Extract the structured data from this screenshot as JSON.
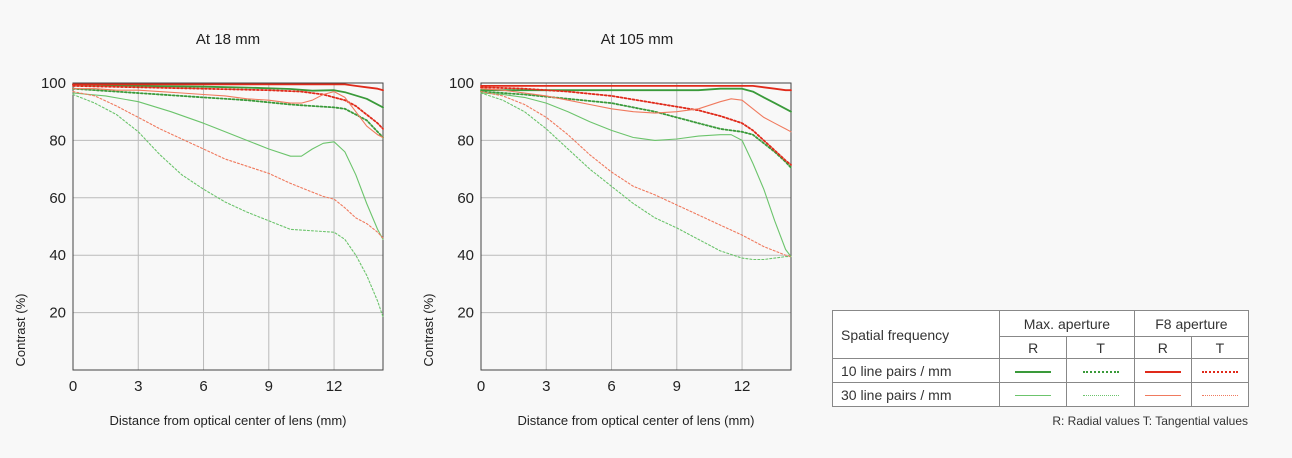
{
  "chart_data": [
    {
      "type": "line",
      "title": "At 18 mm",
      "xlabel": "Distance from optical center of lens (mm)",
      "ylabel": "Contrast (%)",
      "xlim": [
        0,
        14.25
      ],
      "ylim": [
        0,
        100
      ],
      "xticks": [
        0,
        3,
        6,
        9,
        12
      ],
      "yticks": [
        20,
        40,
        60,
        80,
        100
      ],
      "grid": true,
      "series": [
        {
          "name": "10 line pairs / mm, Max. aperture, R",
          "x": [
            0,
            2,
            4,
            6,
            8,
            10,
            11,
            12,
            12.5,
            13.5,
            14.25
          ],
          "y": [
            99.5,
            99.2,
            98.9,
            98.7,
            98.4,
            97.9,
            97.3,
            97.5,
            96.8,
            94.5,
            91.5
          ]
        },
        {
          "name": "10 line pairs / mm, Max. aperture, T",
          "x": [
            0,
            2,
            4,
            6,
            8,
            10,
            11,
            12,
            12.5,
            13.5,
            14.25
          ],
          "y": [
            98,
            97,
            96,
            95,
            94,
            92.5,
            92,
            91.5,
            91,
            87,
            81
          ]
        },
        {
          "name": "30 line pairs / mm, Max. aperture, R",
          "x": [
            0,
            1.5,
            3,
            4.5,
            6,
            7.5,
            9,
            10,
            10.5,
            11,
            11.5,
            12,
            12.5,
            13,
            13.5,
            14,
            14.25
          ],
          "y": [
            96.5,
            95.5,
            93.5,
            90,
            86,
            81.5,
            77,
            74.5,
            74.5,
            77,
            79,
            79.5,
            76,
            68,
            58,
            49,
            45.5
          ]
        },
        {
          "name": "30 line pairs / mm, Max. aperture, T",
          "x": [
            0,
            1,
            2,
            3,
            4,
            5,
            6,
            7,
            8,
            9,
            10,
            11,
            12,
            12.5,
            13,
            13.5,
            14,
            14.25
          ],
          "y": [
            96,
            93,
            89,
            83,
            75,
            68,
            63,
            58.5,
            55,
            52,
            49,
            48.5,
            48,
            45.5,
            40,
            33,
            24,
            18.5
          ]
        },
        {
          "name": "10 line pairs / mm, F8 aperture, R",
          "x": [
            0,
            3,
            6,
            9,
            11.5,
            12,
            12.5,
            13,
            13.5,
            14,
            14.25
          ],
          "y": [
            99.5,
            99.5,
            99.5,
            99.5,
            99.5,
            99.5,
            99.5,
            99,
            98.5,
            98,
            97.5
          ]
        },
        {
          "name": "10 line pairs / mm, F8 aperture, T",
          "x": [
            0,
            3,
            6,
            9,
            10.5,
            11.5,
            12,
            12.5,
            13,
            13.5,
            14,
            14.25
          ],
          "y": [
            99,
            98.5,
            98,
            97.5,
            97,
            96,
            95,
            94,
            92,
            89,
            86,
            84
          ]
        },
        {
          "name": "30 line pairs / mm, F8 aperture, R",
          "x": [
            0,
            1,
            2,
            3,
            4,
            5,
            6,
            7,
            8,
            9,
            10,
            10.5,
            11,
            11.5,
            12,
            12.5,
            13,
            13.5,
            14,
            14.25
          ],
          "y": [
            98,
            98,
            97.5,
            97.5,
            97,
            96.5,
            96,
            95.5,
            94.5,
            94,
            93,
            93,
            94,
            96,
            97,
            95,
            90,
            85,
            82,
            81
          ]
        },
        {
          "name": "30 line pairs / mm, F8 aperture, T",
          "x": [
            0,
            1,
            2,
            3,
            4,
            5,
            6,
            7,
            8,
            9,
            10,
            11,
            11.5,
            12,
            12.5,
            13,
            13.5,
            14,
            14.25
          ],
          "y": [
            97,
            95.5,
            92,
            88,
            84,
            80.5,
            77,
            73.5,
            71,
            68.5,
            65,
            62,
            60.5,
            59.5,
            56.5,
            53,
            51,
            48,
            46
          ]
        }
      ]
    },
    {
      "type": "line",
      "title": "At 105 mm",
      "xlabel": "Distance from optical center of lens (mm)",
      "ylabel": "Contrast (%)",
      "xlim": [
        0,
        14.25
      ],
      "ylim": [
        0,
        100
      ],
      "xticks": [
        0,
        3,
        6,
        9,
        12
      ],
      "yticks": [
        20,
        40,
        60,
        80,
        100
      ],
      "grid": true,
      "series": [
        {
          "name": "10 line pairs / mm, Max. aperture, R",
          "x": [
            0,
            2,
            4,
            6,
            8,
            10,
            11,
            12,
            12.5,
            13,
            13.5,
            14,
            14.25
          ],
          "y": [
            97.5,
            97.5,
            97.5,
            97.5,
            97.5,
            97.5,
            98,
            98,
            97,
            95,
            93,
            91,
            90
          ]
        },
        {
          "name": "10 line pairs / mm, Max. aperture, T",
          "x": [
            0,
            2,
            4,
            6,
            8,
            10,
            11,
            11.5,
            12,
            12.5,
            13,
            13.5,
            14,
            14.25
          ],
          "y": [
            97,
            96,
            94.5,
            93,
            90,
            86,
            84,
            83.5,
            83,
            82,
            79,
            76,
            72.5,
            70.5
          ]
        },
        {
          "name": "30 line pairs / mm, Max. aperture, R",
          "x": [
            0,
            1,
            2,
            3,
            4,
            5,
            6,
            7,
            8,
            9,
            10,
            11,
            11.5,
            12,
            12.5,
            13,
            13.5,
            14,
            14.25
          ],
          "y": [
            96.5,
            96,
            95,
            93,
            90,
            86.5,
            83.5,
            81,
            80,
            80.5,
            81.5,
            82,
            82,
            80,
            72,
            63,
            52,
            42,
            39.5
          ]
        },
        {
          "name": "30 line pairs / mm, Max. aperture, T",
          "x": [
            0,
            1,
            2,
            3,
            4,
            5,
            6,
            7,
            8,
            9,
            10,
            11,
            12,
            12.5,
            13,
            13.5,
            14,
            14.25
          ],
          "y": [
            96.5,
            94,
            90,
            84,
            77,
            70,
            64,
            58,
            53,
            49.5,
            45.5,
            41.5,
            39,
            38.5,
            38.5,
            39,
            39.5,
            39.5
          ]
        },
        {
          "name": "10 line pairs / mm, F8 aperture, R",
          "x": [
            0,
            3,
            6,
            9,
            12,
            12.5,
            13,
            13.5,
            14,
            14.25
          ],
          "y": [
            99,
            99,
            99,
            99,
            99,
            99,
            98.5,
            98,
            97.5,
            97.5
          ]
        },
        {
          "name": "10 line pairs / mm, F8 aperture, T",
          "x": [
            0,
            2,
            4,
            6,
            8,
            10,
            11,
            12,
            12.5,
            13,
            13.5,
            14,
            14.25
          ],
          "y": [
            98.5,
            98,
            97,
            95.5,
            93,
            90.5,
            88.5,
            86,
            83.5,
            80,
            76.5,
            73,
            71.5
          ]
        },
        {
          "name": "30 line pairs / mm, F8 aperture, R",
          "x": [
            0,
            1,
            2,
            3,
            4,
            5,
            6,
            7,
            8,
            9,
            10,
            11,
            11.5,
            12,
            12.5,
            13,
            13.5,
            14,
            14.25
          ],
          "y": [
            98,
            97.5,
            96.5,
            95.5,
            94,
            92.5,
            91,
            90,
            89.5,
            90,
            91,
            93.5,
            94.5,
            94,
            91,
            88,
            86,
            84,
            83
          ]
        },
        {
          "name": "30 line pairs / mm, F8 aperture, T",
          "x": [
            0,
            1,
            2,
            3,
            4,
            5,
            6,
            7,
            8,
            9,
            10,
            11,
            12,
            12.5,
            13,
            13.5,
            14,
            14.25
          ],
          "y": [
            97,
            95.5,
            92.5,
            88,
            82,
            75,
            69,
            64,
            61,
            57.5,
            54,
            50.5,
            47,
            45,
            43,
            41.5,
            40,
            39.5
          ]
        }
      ]
    }
  ],
  "series_styles": [
    {
      "color": "#3a9a3a",
      "width": 1.8,
      "dash": ""
    },
    {
      "color": "#3a9a3a",
      "width": 1.8,
      "dash": "2,2"
    },
    {
      "color": "#6cc46c",
      "width": 1.1,
      "dash": ""
    },
    {
      "color": "#6cc46c",
      "width": 1.1,
      "dash": "2,2"
    },
    {
      "color": "#e02a1a",
      "width": 1.8,
      "dash": ""
    },
    {
      "color": "#e02a1a",
      "width": 1.8,
      "dash": "2,2"
    },
    {
      "color": "#f07a5e",
      "width": 1.1,
      "dash": ""
    },
    {
      "color": "#f07a5e",
      "width": 1.1,
      "dash": "2,2"
    }
  ],
  "legend": {
    "corner": "Spatial frequency",
    "col_max": "Max. aperture",
    "col_f8": "F8 aperture",
    "sub_r1": "R",
    "sub_t1": "T",
    "sub_r2": "R",
    "sub_t2": "T",
    "row_10": "10 line pairs / mm",
    "row_30": "30 line pairs / mm"
  },
  "note": "R: Radial values  T: Tangential values"
}
